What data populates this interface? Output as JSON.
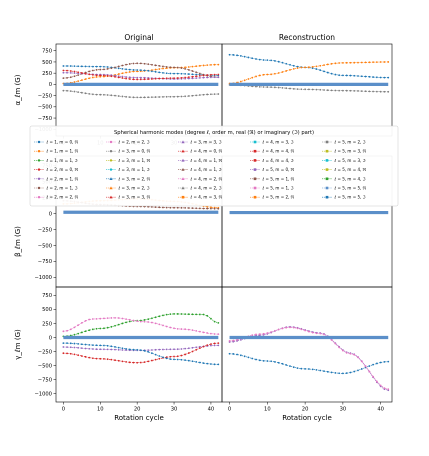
{
  "columns": [
    "Original",
    "Reconstruction"
  ],
  "rows": [
    {
      "id": "alpha",
      "ylabel": "α_ℓm (G)"
    },
    {
      "id": "beta",
      "ylabel": "β_ℓm (G)"
    },
    {
      "id": "gamma",
      "ylabel": "γ_ℓm (G)"
    }
  ],
  "xlabel": "Rotation cycle",
  "legend": {
    "title": "Spherical harmonic modes (degree ℓ, order m, real (ℜ) or imaginary (ℑ) part)",
    "entries": [
      "ℓ = 1, m = 0, ℜ",
      "ℓ = 1, m = 1, ℜ",
      "ℓ = 1, m = 1, ℑ",
      "ℓ = 2, m = 0, ℜ",
      "ℓ = 2, m = 1, ℜ",
      "ℓ = 2, m = 1, ℑ",
      "ℓ = 2, m = 2, ℜ",
      "ℓ = 2, m = 2, ℑ",
      "ℓ = 3, m = 0, ℜ",
      "ℓ = 3, m = 1, ℜ",
      "ℓ = 3, m = 1, ℑ",
      "ℓ = 3, m = 2, ℜ",
      "ℓ = 3, m = 2, ℑ",
      "ℓ = 3, m = 3, ℜ",
      "ℓ = 3, m = 3, ℑ",
      "ℓ = 4, m = 0, ℜ",
      "ℓ = 4, m = 1, ℜ",
      "ℓ = 4, m = 1, ℑ",
      "ℓ = 4, m = 2, ℜ",
      "ℓ = 4, m = 2, ℑ",
      "ℓ = 4, m = 3, ℜ",
      "ℓ = 4, m = 3, ℑ",
      "ℓ = 4, m = 4, ℜ",
      "ℓ = 4, m = 4, ℑ",
      "ℓ = 5, m = 0, ℜ",
      "ℓ = 5, m = 1, ℜ",
      "ℓ = 5, m = 1, ℑ",
      "ℓ = 5, m = 2, ℜ",
      "ℓ = 5, m = 2, ℑ",
      "ℓ = 5, m = 3, ℜ",
      "ℓ = 5, m = 3, ℑ",
      "ℓ = 5, m = 4, ℜ",
      "ℓ = 5, m = 4, ℑ",
      "ℓ = 5, m = 5, ℜ",
      "ℓ = 5, m = 5, ℑ"
    ]
  },
  "colors": {
    "blue": "#1f77b4",
    "orange": "#ff7f0e",
    "green": "#2ca02c",
    "red": "#d62728",
    "purple": "#9467bd",
    "brown": "#8c564b",
    "pink": "#e377c2",
    "gray": "#7f7f7f",
    "olive": "#bcbd22",
    "cyan": "#17becf",
    "steel": "#5b8fc9"
  },
  "chart_data": [
    {
      "type": "line",
      "panel": "alpha-original",
      "x": [
        0,
        42
      ],
      "xlim": [
        -2,
        43
      ],
      "ylim": [
        -1150,
        900
      ],
      "yticks": [
        -1000,
        -750,
        -500,
        -250,
        0,
        250,
        500,
        750
      ],
      "xticks": [
        0,
        10,
        20,
        30,
        40
      ],
      "series": [
        {
          "color": "orange",
          "points": [
            [
              0,
              20
            ],
            [
              10,
              170
            ],
            [
              20,
              290
            ],
            [
              30,
              370
            ],
            [
              42,
              440
            ]
          ]
        },
        {
          "color": "blue",
          "points": [
            [
              0,
              410
            ],
            [
              10,
              395
            ],
            [
              20,
              320
            ],
            [
              30,
              240
            ],
            [
              42,
              200
            ]
          ]
        },
        {
          "color": "brown",
          "points": [
            [
              0,
              140
            ],
            [
              10,
              330
            ],
            [
              20,
              470
            ],
            [
              30,
              380
            ],
            [
              42,
              160
            ]
          ]
        },
        {
          "color": "purple",
          "points": [
            [
              0,
              260
            ],
            [
              10,
              220
            ],
            [
              20,
              150
            ],
            [
              30,
              120
            ],
            [
              42,
              160
            ]
          ]
        },
        {
          "color": "red",
          "points": [
            [
              0,
              310
            ],
            [
              10,
              200
            ],
            [
              20,
              110
            ],
            [
              30,
              140
            ],
            [
              42,
              220
            ]
          ]
        },
        {
          "color": "gray",
          "points": [
            [
              0,
              -140
            ],
            [
              10,
              -230
            ],
            [
              20,
              -290
            ],
            [
              30,
              -275
            ],
            [
              42,
              -215
            ]
          ]
        },
        {
          "color": "steel",
          "thick": true,
          "points": [
            [
              0,
              0
            ],
            [
              42,
              0
            ]
          ]
        }
      ]
    },
    {
      "type": "line",
      "panel": "alpha-reconstruction",
      "x": [
        0,
        42
      ],
      "xlim": [
        -2,
        43
      ],
      "ylim": [
        -1150,
        900
      ],
      "series": [
        {
          "color": "blue",
          "points": [
            [
              0,
              660
            ],
            [
              10,
              540
            ],
            [
              20,
              380
            ],
            [
              30,
              200
            ],
            [
              42,
              150
            ]
          ]
        },
        {
          "color": "orange",
          "points": [
            [
              0,
              20
            ],
            [
              10,
              220
            ],
            [
              20,
              380
            ],
            [
              30,
              480
            ],
            [
              42,
              500
            ]
          ]
        },
        {
          "color": "gray",
          "points": [
            [
              0,
              -10
            ],
            [
              10,
              -60
            ],
            [
              20,
              -110
            ],
            [
              30,
              -140
            ],
            [
              42,
              -165
            ]
          ]
        },
        {
          "color": "steel",
          "thick": true,
          "points": [
            [
              0,
              0
            ],
            [
              42,
              0
            ]
          ]
        }
      ]
    },
    {
      "type": "line",
      "panel": "beta-original",
      "x": [
        0,
        42
      ],
      "xlim": [
        -2,
        43
      ],
      "ylim": [
        -1150,
        900
      ],
      "yticks": [
        -1000,
        -750,
        -500,
        -250,
        0,
        250,
        500,
        750
      ],
      "series": [
        {
          "color": "orange",
          "points": [
            [
              0,
              150
            ],
            [
              10,
              200
            ],
            [
              20,
              230
            ],
            [
              30,
              190
            ],
            [
              42,
              90
            ]
          ]
        },
        {
          "color": "brown",
          "points": [
            [
              0,
              200
            ],
            [
              10,
              140
            ],
            [
              20,
              110
            ],
            [
              30,
              90
            ],
            [
              42,
              75
            ]
          ]
        },
        {
          "color": "steel",
          "thick": true,
          "points": [
            [
              0,
              20
            ],
            [
              42,
              20
            ]
          ]
        }
      ]
    },
    {
      "type": "line",
      "panel": "beta-reconstruction",
      "x": [
        0,
        42
      ],
      "xlim": [
        -2,
        43
      ],
      "ylim": [
        -1150,
        900
      ],
      "series": [
        {
          "color": "steel",
          "thick": true,
          "points": [
            [
              0,
              15
            ],
            [
              42,
              15
            ]
          ]
        }
      ]
    },
    {
      "type": "line",
      "panel": "gamma-original",
      "x": [
        0,
        42
      ],
      "xlim": [
        -2,
        43
      ],
      "ylim": [
        -1150,
        900
      ],
      "yticks": [
        -1000,
        -750,
        -500,
        -250,
        0,
        250,
        500,
        750
      ],
      "xticks": [
        0,
        10,
        20,
        30,
        40
      ],
      "series": [
        {
          "color": "green",
          "points": [
            [
              0,
              20
            ],
            [
              10,
              160
            ],
            [
              20,
              300
            ],
            [
              30,
              420
            ],
            [
              38,
              410
            ],
            [
              42,
              260
            ]
          ]
        },
        {
          "color": "pink",
          "points": [
            [
              0,
              110
            ],
            [
              8,
              330
            ],
            [
              14,
              350
            ],
            [
              22,
              280
            ],
            [
              32,
              150
            ],
            [
              42,
              60
            ]
          ]
        },
        {
          "color": "purple",
          "points": [
            [
              0,
              -170
            ],
            [
              10,
              -210
            ],
            [
              20,
              -230
            ],
            [
              30,
              -210
            ],
            [
              42,
              -140
            ]
          ]
        },
        {
          "color": "red",
          "points": [
            [
              0,
              -280
            ],
            [
              10,
              -380
            ],
            [
              20,
              -450
            ],
            [
              30,
              -340
            ],
            [
              42,
              -100
            ]
          ]
        },
        {
          "color": "blue",
          "points": [
            [
              0,
              -100
            ],
            [
              10,
              -140
            ],
            [
              20,
              -220
            ],
            [
              30,
              -390
            ],
            [
              42,
              -480
            ]
          ]
        },
        {
          "color": "steel",
          "thick": true,
          "points": [
            [
              0,
              0
            ],
            [
              42,
              0
            ]
          ]
        }
      ]
    },
    {
      "type": "line",
      "panel": "gamma-reconstruction",
      "x": [
        0,
        42
      ],
      "xlim": [
        -2,
        43
      ],
      "ylim": [
        -1150,
        900
      ],
      "xticks": [
        0,
        10,
        20,
        30,
        40
      ],
      "series": [
        {
          "color": "blue",
          "points": [
            [
              0,
              -290
            ],
            [
              10,
              -420
            ],
            [
              20,
              -560
            ],
            [
              30,
              -640
            ],
            [
              42,
              -430
            ]
          ]
        },
        {
          "color": "purple",
          "points": [
            [
              0,
              -80
            ],
            [
              8,
              40
            ],
            [
              16,
              190
            ],
            [
              24,
              80
            ],
            [
              32,
              -280
            ],
            [
              42,
              -940
            ]
          ]
        },
        {
          "color": "pink",
          "points": [
            [
              0,
              -60
            ],
            [
              8,
              60
            ],
            [
              16,
              180
            ],
            [
              24,
              70
            ],
            [
              32,
              -290
            ],
            [
              42,
              -920
            ]
          ]
        },
        {
          "color": "steel",
          "thick": true,
          "points": [
            [
              0,
              0
            ],
            [
              42,
              0
            ]
          ]
        }
      ]
    }
  ]
}
